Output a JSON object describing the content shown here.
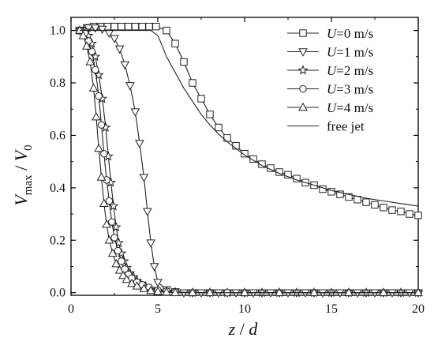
{
  "chart_data": {
    "type": "line",
    "title": "",
    "xlabel": {
      "main": "z",
      "sep": " / ",
      "den": "d"
    },
    "ylabel": {
      "num": "V",
      "num_sub": "max",
      "sep": " / ",
      "den": "V",
      "den_sub": "0"
    },
    "xlim": [
      0,
      20
    ],
    "ylim": [
      -0.01,
      1.05
    ],
    "xticks": [
      0,
      5,
      10,
      15,
      20
    ],
    "xtick_labels": [
      "0",
      "5",
      "10",
      "15",
      "20"
    ],
    "yticks": [
      0.0,
      0.2,
      0.4,
      0.6,
      0.8,
      1.0
    ],
    "ytick_labels": [
      "0.0",
      "0.2",
      "0.4",
      "0.6",
      "0.8",
      "1.0"
    ],
    "grid": false,
    "legend_position": "top-right",
    "series": [
      {
        "name": "U=0 m/s",
        "label_var": "U",
        "label_rest": "=0 m/s",
        "marker": "square",
        "x": [
          0.5,
          0.9,
          1.3,
          1.7,
          2.1,
          2.5,
          2.9,
          3.3,
          3.7,
          4.1,
          4.5,
          4.9,
          5.5,
          6.0,
          6.5,
          7.0,
          7.5,
          8.0,
          8.5,
          9.0,
          9.5,
          10.0,
          10.5,
          11.0,
          11.5,
          12.0,
          12.5,
          13.0,
          13.5,
          14.0,
          14.5,
          15.0,
          15.5,
          16.0,
          16.5,
          17.0,
          17.5,
          18.0,
          18.5,
          19.0,
          19.5,
          20.0
        ],
        "y": [
          1.0,
          1.01,
          1.015,
          1.015,
          1.015,
          1.015,
          1.015,
          1.015,
          1.015,
          1.015,
          1.015,
          1.015,
          1.0,
          0.95,
          0.88,
          0.8,
          0.74,
          0.68,
          0.63,
          0.59,
          0.56,
          0.53,
          0.51,
          0.49,
          0.475,
          0.46,
          0.45,
          0.435,
          0.42,
          0.41,
          0.395,
          0.385,
          0.375,
          0.365,
          0.355,
          0.345,
          0.335,
          0.325,
          0.315,
          0.31,
          0.3,
          0.295
        ]
      },
      {
        "name": "U=1 m/s",
        "label_var": "U",
        "label_rest": "=1 m/s",
        "marker": "triangle-down",
        "x": [
          0.5,
          1.0,
          1.4,
          1.8,
          2.2,
          2.5,
          2.8,
          3.1,
          3.4,
          3.7,
          3.95,
          4.2,
          4.4,
          4.6,
          4.8,
          5.0,
          5.5,
          6.0,
          6.5,
          7.0,
          7.5,
          8.0,
          8.5,
          9.0,
          9.5,
          10.0,
          10.5,
          11.0,
          11.5,
          12.0,
          12.5,
          13.0,
          13.5,
          14.0,
          14.5,
          15.0,
          15.5,
          16.0,
          16.5,
          17.0,
          17.5,
          18.0,
          18.5,
          19.0,
          19.5,
          20.0
        ],
        "y": [
          1.0,
          1.01,
          1.01,
          1.005,
          0.99,
          0.97,
          0.93,
          0.87,
          0.79,
          0.69,
          0.57,
          0.44,
          0.31,
          0.19,
          0.1,
          0.04,
          0.012,
          0.004,
          0.0,
          0.0,
          0.0,
          0.0,
          0.0,
          0.0,
          0.0,
          0.0,
          0.0,
          0.0,
          0.0,
          0.0,
          0.0,
          0.0,
          0.0,
          0.0,
          0.0,
          0.0,
          0.0,
          0.0,
          0.0,
          0.0,
          0.0,
          0.0,
          0.0,
          0.0,
          0.0,
          0.0
        ]
      },
      {
        "name": "U=2 m/s",
        "label_var": "U",
        "label_rest": "=2 m/s",
        "marker": "star",
        "x": [
          0.5,
          0.8,
          1.0,
          1.2,
          1.4,
          1.6,
          1.8,
          2.0,
          2.15,
          2.3,
          2.45,
          2.6,
          2.75,
          2.9,
          3.05,
          3.2,
          3.4,
          3.6,
          3.8,
          4.0,
          4.3,
          4.6,
          5.0,
          5.5,
          6.0,
          7.0,
          8.0,
          9.0,
          10.0,
          11.0,
          12.0,
          13.0,
          14.0,
          15.0,
          16.0,
          17.0,
          18.0,
          19.0,
          20.0
        ],
        "y": [
          1.0,
          1.0,
          0.98,
          0.95,
          0.9,
          0.83,
          0.74,
          0.63,
          0.52,
          0.42,
          0.33,
          0.25,
          0.19,
          0.15,
          0.12,
          0.095,
          0.075,
          0.06,
          0.045,
          0.035,
          0.025,
          0.015,
          0.008,
          0.004,
          0.002,
          0.0,
          0.0,
          0.0,
          0.0,
          0.0,
          0.0,
          0.0,
          0.0,
          0.0,
          0.0,
          0.0,
          0.0,
          0.0,
          0.0
        ]
      },
      {
        "name": "U=3 m/s",
        "label_var": "U",
        "label_rest": "=3 m/s",
        "marker": "circle",
        "x": [
          0.5,
          0.8,
          1.0,
          1.2,
          1.4,
          1.6,
          1.75,
          1.9,
          2.05,
          2.2,
          2.35,
          2.5,
          2.7,
          2.9,
          3.1,
          3.3,
          3.5,
          3.8,
          4.1,
          4.5,
          5.0,
          5.5,
          6.0,
          7.0,
          8.0,
          9.0,
          10.0,
          12.0,
          14.0,
          16.0,
          18.0,
          20.0
        ],
        "y": [
          1.0,
          0.99,
          0.96,
          0.92,
          0.85,
          0.75,
          0.64,
          0.53,
          0.43,
          0.35,
          0.27,
          0.21,
          0.16,
          0.12,
          0.09,
          0.07,
          0.055,
          0.04,
          0.03,
          0.02,
          0.01,
          0.006,
          0.003,
          0.0,
          0.0,
          0.0,
          0.0,
          0.0,
          0.0,
          0.0,
          0.0,
          0.0
        ]
      },
      {
        "name": "U=4 m/s",
        "label_var": "U",
        "label_rest": "=4 m/s",
        "marker": "triangle-up",
        "x": [
          0.5,
          0.7,
          0.9,
          1.1,
          1.3,
          1.45,
          1.6,
          1.75,
          1.9,
          2.05,
          2.2,
          2.4,
          2.6,
          2.8,
          3.0,
          3.2,
          3.5,
          3.8,
          4.2,
          4.6,
          5.0,
          5.5,
          6.0,
          7.0,
          8.0,
          10.0,
          12.0,
          14.0,
          16.0,
          18.0,
          20.0
        ],
        "y": [
          1.0,
          0.98,
          0.94,
          0.88,
          0.78,
          0.67,
          0.55,
          0.44,
          0.34,
          0.26,
          0.2,
          0.15,
          0.11,
          0.085,
          0.065,
          0.05,
          0.035,
          0.025,
          0.015,
          0.008,
          0.004,
          0.002,
          0.0,
          0.0,
          0.0,
          0.0,
          0.0,
          0.0,
          0.0,
          0.0,
          0.0
        ]
      },
      {
        "name": "free jet",
        "label_var": "",
        "label_rest": "free jet",
        "marker": "none",
        "x": [
          0.5,
          1.0,
          2.0,
          3.0,
          4.0,
          4.6,
          5.0,
          5.2,
          5.5,
          6.0,
          6.5,
          7.0,
          7.5,
          8.0,
          8.5,
          9.0,
          9.5,
          10.0,
          11.0,
          12.0,
          13.0,
          14.0,
          15.0,
          16.0,
          17.0,
          18.0,
          19.0,
          20.0
        ],
        "y": [
          1.0,
          1.0,
          1.0,
          1.0,
          1.0,
          1.0,
          0.98,
          0.95,
          0.9,
          0.84,
          0.78,
          0.73,
          0.68,
          0.64,
          0.605,
          0.575,
          0.55,
          0.525,
          0.485,
          0.455,
          0.43,
          0.41,
          0.39,
          0.375,
          0.36,
          0.35,
          0.34,
          0.33
        ]
      }
    ]
  }
}
